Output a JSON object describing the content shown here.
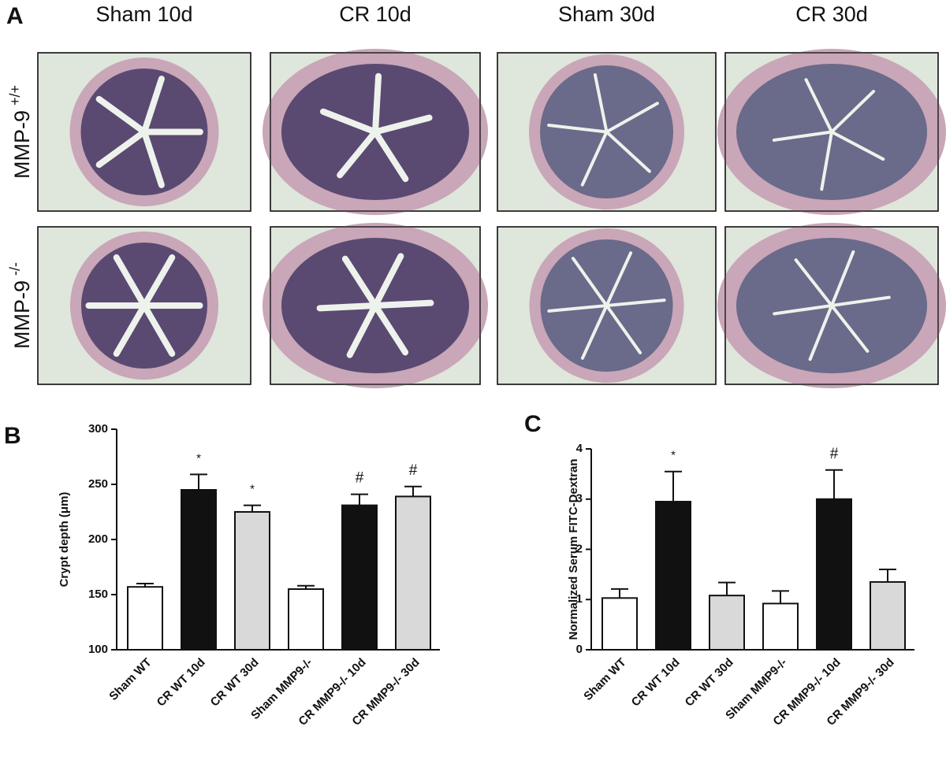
{
  "panel_a": {
    "label": "A",
    "columns": [
      "Sham 10d",
      "CR 10d",
      "Sham 30d",
      "CR 30d"
    ],
    "rows": [
      {
        "name": "MMP-9",
        "superscript": "+/+"
      },
      {
        "name": "MMP-9",
        "superscript": "-/-"
      }
    ]
  },
  "chart_data": [
    {
      "type": "bar",
      "panel_label": "B",
      "ylabel": "Crypt depth (μm)",
      "categories": [
        "Sham WT",
        "CR WT 10d",
        "CR WT 30d",
        "Sham MMP9-/-",
        "CR MMP9-/- 10d",
        "CR MMP9-/- 30d"
      ],
      "values": [
        157,
        245,
        225,
        155,
        231,
        239
      ],
      "errors": [
        3,
        14,
        6,
        3,
        10,
        9
      ],
      "annotations": [
        null,
        "*",
        "*",
        null,
        "#",
        "#"
      ],
      "colors": [
        "#ffffff",
        "#111111",
        "#d9d9d9",
        "#ffffff",
        "#111111",
        "#d9d9d9"
      ],
      "ylim": [
        100,
        300
      ],
      "yticks": [
        100,
        150,
        200,
        250,
        300
      ]
    },
    {
      "type": "bar",
      "panel_label": "C",
      "ylabel": "Normalized Serum FITC-Dextran",
      "categories": [
        "Sham WT",
        "CR WT 10d",
        "CR WT 30d",
        "Sham MMP9-/-",
        "CR MMP9-/- 10d",
        "CR MMP9-/- 30d"
      ],
      "values": [
        1.03,
        2.95,
        1.08,
        0.92,
        3.0,
        1.35
      ],
      "errors": [
        0.18,
        0.6,
        0.26,
        0.25,
        0.58,
        0.25
      ],
      "annotations": [
        null,
        "*",
        null,
        null,
        "#",
        null
      ],
      "colors": [
        "#ffffff",
        "#111111",
        "#d9d9d9",
        "#ffffff",
        "#111111",
        "#d9d9d9"
      ],
      "ylim": [
        0,
        4
      ],
      "yticks": [
        0,
        1,
        2,
        3,
        4
      ]
    }
  ]
}
